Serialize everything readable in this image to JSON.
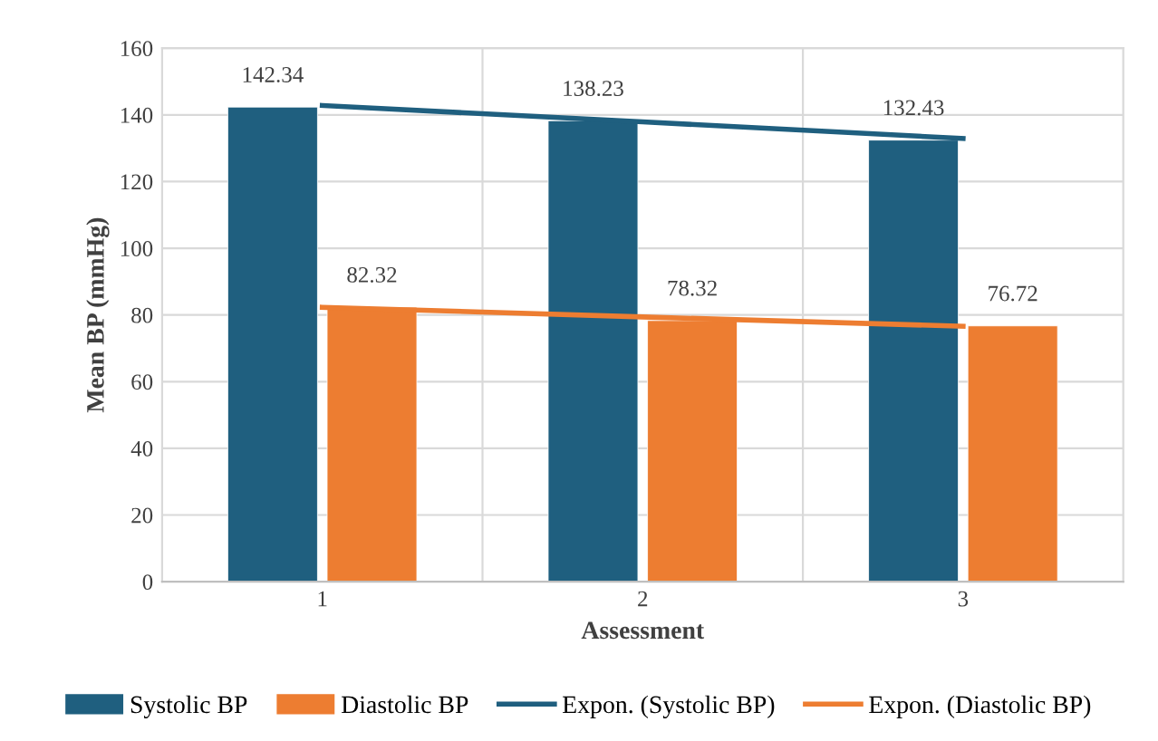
{
  "chart_data": {
    "type": "bar",
    "xlabel": "Assessment",
    "ylabel": "Mean BP (mmHg)",
    "categories": [
      "1",
      "2",
      "3"
    ],
    "series": [
      {
        "name": "Systolic BP",
        "color": "#1f5f7f",
        "values": [
          142.34,
          138.23,
          132.43
        ],
        "value_labels": [
          "142.34",
          "138.23",
          "132.43"
        ]
      },
      {
        "name": "Diastolic BP",
        "color": "#ed7d31",
        "values": [
          82.32,
          78.32,
          76.72
        ],
        "value_labels": [
          "82.32",
          "78.32",
          "76.72"
        ]
      },
      {
        "name": "Expon. (Systolic BP)",
        "type": "line",
        "color": "#1f5f7f",
        "x": [
          "1",
          "2",
          "3"
        ],
        "values": [
          142.8,
          137.9,
          132.9
        ]
      },
      {
        "name": "Expon. (Diastolic BP)",
        "type": "line",
        "color": "#ed7d31",
        "x": [
          "1",
          "2",
          "3"
        ],
        "values": [
          82.3,
          79.4,
          76.6
        ]
      }
    ],
    "ylim": [
      0,
      160
    ],
    "yticks": [
      0,
      20,
      40,
      60,
      80,
      100,
      120,
      140,
      160
    ],
    "grid": true,
    "legend": "bottom",
    "marker": "none",
    "line_style": "solid"
  }
}
